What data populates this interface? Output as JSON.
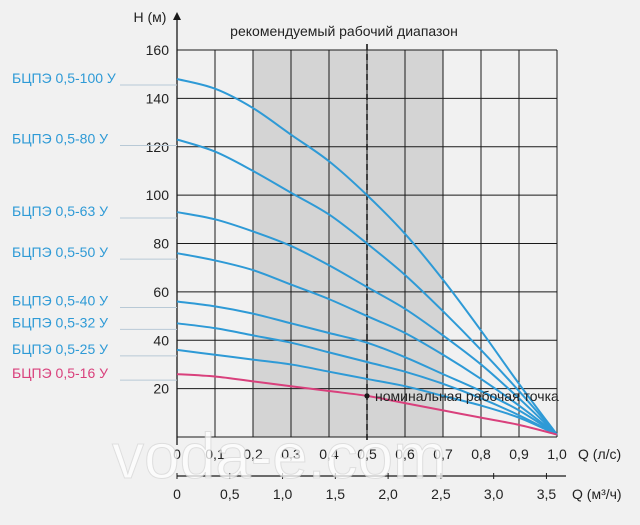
{
  "chart_data": {
    "type": "line",
    "title": "рекомендуемый рабочий диапазон",
    "ylabel": "H (м)",
    "xlabel": "Q (л/с)",
    "x2label": "Q (м³/ч)",
    "xlim": [
      0,
      1.0
    ],
    "ylim": [
      0,
      160
    ],
    "x_ticks": [
      "0",
      "0,1",
      "0,2",
      "0,3",
      "0,4",
      "0,5",
      "0,6",
      "0,7",
      "0,8",
      "0,9",
      "1,0"
    ],
    "x2_ticks": [
      "0",
      "0,5",
      "1,0",
      "1,5",
      "2,0",
      "2,5",
      "3,0",
      "3,5"
    ],
    "y_ticks": [
      "20",
      "40",
      "60",
      "80",
      "100",
      "120",
      "140",
      "160"
    ],
    "recommended_range": [
      0.2,
      0.7
    ],
    "nominal_point": {
      "x": 0.5,
      "y": 17,
      "label": "номинальная рабочая точка"
    },
    "series": [
      {
        "name": "БЦПЭ 0,5-100 У",
        "color": "#2e9ad6",
        "x": [
          0,
          0.1,
          0.2,
          0.3,
          0.4,
          0.5,
          0.6,
          0.7,
          0.8,
          0.9,
          1.0
        ],
        "values": [
          148,
          144,
          136,
          125,
          114,
          100,
          84,
          65,
          44,
          22,
          1
        ]
      },
      {
        "name": "БЦПЭ 0,5-80 У",
        "color": "#2e9ad6",
        "x": [
          0,
          0.1,
          0.2,
          0.3,
          0.4,
          0.5,
          0.6,
          0.7,
          0.8,
          0.9,
          1.0
        ],
        "values": [
          123,
          118,
          110,
          101,
          92,
          80,
          67,
          52,
          36,
          19,
          1
        ]
      },
      {
        "name": "БЦПЭ 0,5-63 У",
        "color": "#2e9ad6",
        "x": [
          0,
          0.1,
          0.2,
          0.3,
          0.4,
          0.5,
          0.6,
          0.7,
          0.8,
          0.9,
          1.0
        ],
        "values": [
          93,
          90,
          85,
          79,
          71,
          62,
          53,
          42,
          30,
          16,
          1
        ]
      },
      {
        "name": "БЦПЭ 0,5-50 У",
        "color": "#2e9ad6",
        "x": [
          0,
          0.1,
          0.2,
          0.3,
          0.4,
          0.5,
          0.6,
          0.7,
          0.8,
          0.9,
          1.0
        ],
        "values": [
          76,
          73,
          69,
          63,
          57,
          50,
          43,
          34,
          24,
          13,
          1
        ]
      },
      {
        "name": "БЦПЭ 0,5-40 У",
        "color": "#2e9ad6",
        "x": [
          0,
          0.1,
          0.2,
          0.3,
          0.4,
          0.5,
          0.6,
          0.7,
          0.8,
          0.9,
          1.0
        ],
        "values": [
          56,
          54,
          51,
          47,
          43,
          39,
          33,
          26,
          19,
          11,
          1
        ]
      },
      {
        "name": "БЦПЭ 0,5-32 У",
        "color": "#2e9ad6",
        "x": [
          0,
          0.1,
          0.2,
          0.3,
          0.4,
          0.5,
          0.6,
          0.7,
          0.8,
          0.9,
          1.0
        ],
        "values": [
          47,
          45,
          42,
          39,
          35,
          31,
          27,
          22,
          16,
          9,
          1
        ]
      },
      {
        "name": "БЦПЭ 0,5-25 У",
        "color": "#2e9ad6",
        "x": [
          0,
          0.1,
          0.2,
          0.3,
          0.4,
          0.5,
          0.6,
          0.7,
          0.8,
          0.9,
          1.0
        ],
        "values": [
          36,
          34,
          32,
          30,
          27,
          24,
          21,
          17,
          13,
          8,
          1
        ]
      },
      {
        "name": "БЦПЭ 0,5-16 У",
        "color": "#d9407c",
        "x": [
          0,
          0.1,
          0.2,
          0.3,
          0.4,
          0.5,
          0.6,
          0.7,
          0.8,
          0.9,
          1.0
        ],
        "values": [
          26,
          25,
          23,
          21,
          19,
          17,
          14,
          11,
          8,
          5,
          1
        ]
      }
    ]
  },
  "watermark": "voda-e.com"
}
